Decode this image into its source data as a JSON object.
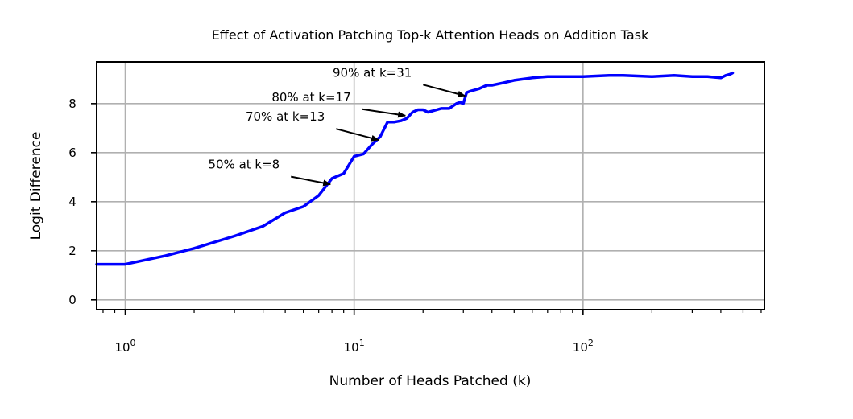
{
  "chart_data": {
    "type": "line",
    "title": "Effect of Activation Patching Top-k Attention Heads on Addition Task",
    "xlabel": "Number of Heads Patched (k)",
    "ylabel": "Logit Difference",
    "x_scale": "log",
    "xlim": [
      0.75,
      620
    ],
    "ylim": [
      -0.4,
      9.7
    ],
    "grid": true,
    "line_color": "#0000ff",
    "x_ticks": [
      {
        "value": 1,
        "base": "10",
        "exp": "0"
      },
      {
        "value": 10,
        "base": "10",
        "exp": "1"
      },
      {
        "value": 100,
        "base": "10",
        "exp": "2"
      }
    ],
    "y_ticks": [
      0,
      2,
      4,
      6,
      8
    ],
    "series": [
      {
        "x": [
          0.75,
          1,
          1.5,
          2,
          3,
          4,
          5,
          6,
          7,
          8,
          9,
          10,
          11,
          12,
          13,
          14,
          15,
          16,
          17,
          18,
          19,
          20,
          21,
          22,
          24,
          26,
          28,
          29,
          30,
          31,
          32,
          35,
          38,
          40,
          45,
          50,
          60,
          70,
          80,
          100,
          130,
          150,
          200,
          250,
          300,
          350,
          400,
          420,
          440,
          450
        ],
        "y": [
          1.45,
          1.45,
          1.8,
          2.1,
          2.6,
          3.0,
          3.55,
          3.8,
          4.25,
          4.95,
          5.15,
          5.85,
          5.95,
          6.35,
          6.65,
          7.25,
          7.25,
          7.3,
          7.4,
          7.65,
          7.75,
          7.75,
          7.65,
          7.7,
          7.8,
          7.8,
          8.0,
          8.05,
          8.0,
          8.45,
          8.5,
          8.6,
          8.75,
          8.75,
          8.85,
          8.95,
          9.05,
          9.1,
          9.1,
          9.1,
          9.15,
          9.15,
          9.1,
          9.15,
          9.1,
          9.1,
          9.05,
          9.15,
          9.2,
          9.25
        ]
      }
    ],
    "annotations": [
      {
        "text": "50% at k=8",
        "point": [
          8,
          4.7
        ],
        "text_at": [
          3.3,
          5.35
        ]
      },
      {
        "text": "70% at k=13",
        "point": [
          13,
          6.5
        ],
        "text_at": [
          5.0,
          7.3
        ]
      },
      {
        "text": "80% at k=17",
        "point": [
          17,
          7.5
        ],
        "text_at": [
          6.5,
          8.1
        ]
      },
      {
        "text": "90% at k=31",
        "point": [
          31,
          8.3
        ],
        "text_at": [
          12.0,
          9.1
        ]
      }
    ]
  }
}
